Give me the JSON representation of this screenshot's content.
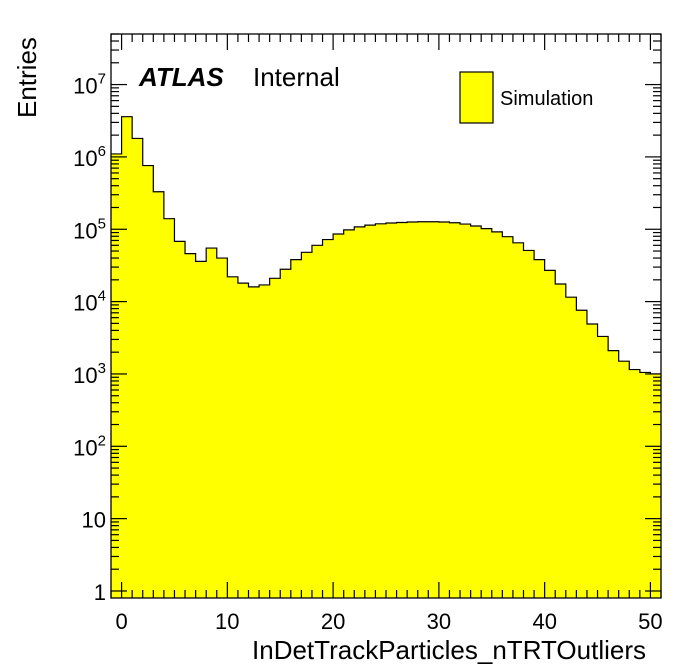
{
  "chart_data": {
    "type": "bar",
    "style": "histogram",
    "log_scale_y": true,
    "fill_color": "#ffff00",
    "line_color": "#000000",
    "xlabel": "InDetTrackParticles_nTRTOutliers",
    "ylabel": "Entries",
    "xlim": [
      -1,
      51
    ],
    "ylim": [
      0.8,
      50000000
    ],
    "x_ticks": [
      "0",
      "10",
      "20",
      "30",
      "40",
      "50"
    ],
    "y_ticks": [
      {
        "base": "1",
        "exp": ""
      },
      {
        "base": "10",
        "exp": ""
      },
      {
        "base": "10",
        "exp": "2"
      },
      {
        "base": "10",
        "exp": "3"
      },
      {
        "base": "10",
        "exp": "4"
      },
      {
        "base": "10",
        "exp": "5"
      },
      {
        "base": "10",
        "exp": "6"
      },
      {
        "base": "10",
        "exp": "7"
      }
    ],
    "label_main": "ATLAS",
    "label_sub": "Internal",
    "legend": {
      "label": "Simulation",
      "position": "top-right"
    },
    "bin_width": 1,
    "bin_low_edges": [
      -1,
      0,
      1,
      2,
      3,
      4,
      5,
      6,
      7,
      8,
      9,
      10,
      11,
      12,
      13,
      14,
      15,
      16,
      17,
      18,
      19,
      20,
      21,
      22,
      23,
      24,
      25,
      26,
      27,
      28,
      29,
      30,
      31,
      32,
      33,
      34,
      35,
      36,
      37,
      38,
      39,
      40,
      41,
      42,
      43,
      44,
      45,
      46,
      47,
      48,
      49,
      50
    ],
    "values": [
      1100000,
      3600000,
      1800000,
      760000,
      330000,
      140000,
      68000,
      46000,
      36000,
      55000,
      40000,
      22000,
      18000,
      16000,
      17000,
      21000,
      28000,
      38000,
      48000,
      60000,
      72000,
      86000,
      98000,
      108000,
      114000,
      119000,
      122000,
      124000,
      126000,
      127000,
      127000,
      126000,
      123000,
      118000,
      111000,
      102000,
      92000,
      79000,
      65000,
      51000,
      38000,
      27000,
      17500,
      11500,
      7600,
      4900,
      3300,
      2100,
      1500,
      1150,
      1050,
      1000
    ]
  }
}
